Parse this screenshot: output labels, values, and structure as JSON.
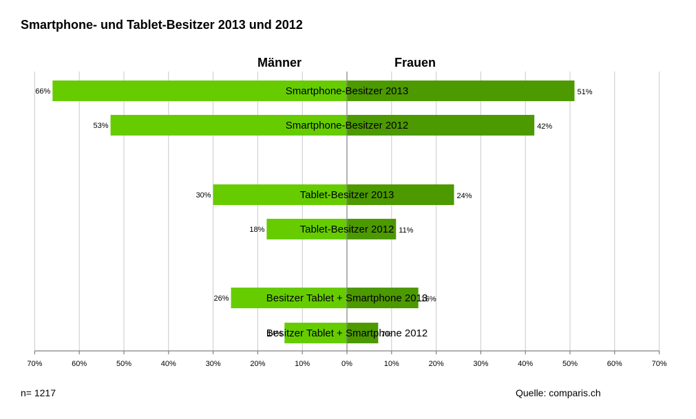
{
  "title": "Smartphone- und Tablet-Besitzer 2013 und 2012",
  "footer": {
    "n": "n= 1217",
    "source": "Quelle: comparis.ch"
  },
  "colors": {
    "maenner": "#66cc00",
    "frauen": "#4d9900"
  },
  "chart_data": {
    "type": "bar",
    "orientation": "horizontal-diverging",
    "categories": [
      "Smartphone-Besitzer  2013",
      "Smartphone-Besitzer  2012",
      "Tablet-Besitzer  2013",
      "Tablet-Besitzer  2012",
      "Besitzer Tablet + Smartphone  2013",
      "Besitzer Tablet + Smartphone  2012"
    ],
    "series": [
      {
        "name": "Männer",
        "values": [
          66,
          53,
          30,
          18,
          26,
          14
        ]
      },
      {
        "name": "Frauen",
        "values": [
          51,
          42,
          24,
          11,
          16,
          7
        ]
      }
    ],
    "value_labels": {
      "Männer": [
        "66%",
        "53%",
        "30%",
        "18%",
        "26%",
        "14%"
      ],
      "Frauen": [
        "51%",
        "42%",
        "24%",
        "11%",
        "16%",
        "7%"
      ]
    },
    "xlim": [
      -70,
      70
    ],
    "xticks": [
      "70%",
      "60%",
      "50%",
      "40%",
      "30%",
      "20%",
      "10%",
      "0%",
      "10%",
      "20%",
      "30%",
      "40%",
      "50%",
      "60%",
      "70%"
    ],
    "grid": true,
    "unit": "%"
  }
}
